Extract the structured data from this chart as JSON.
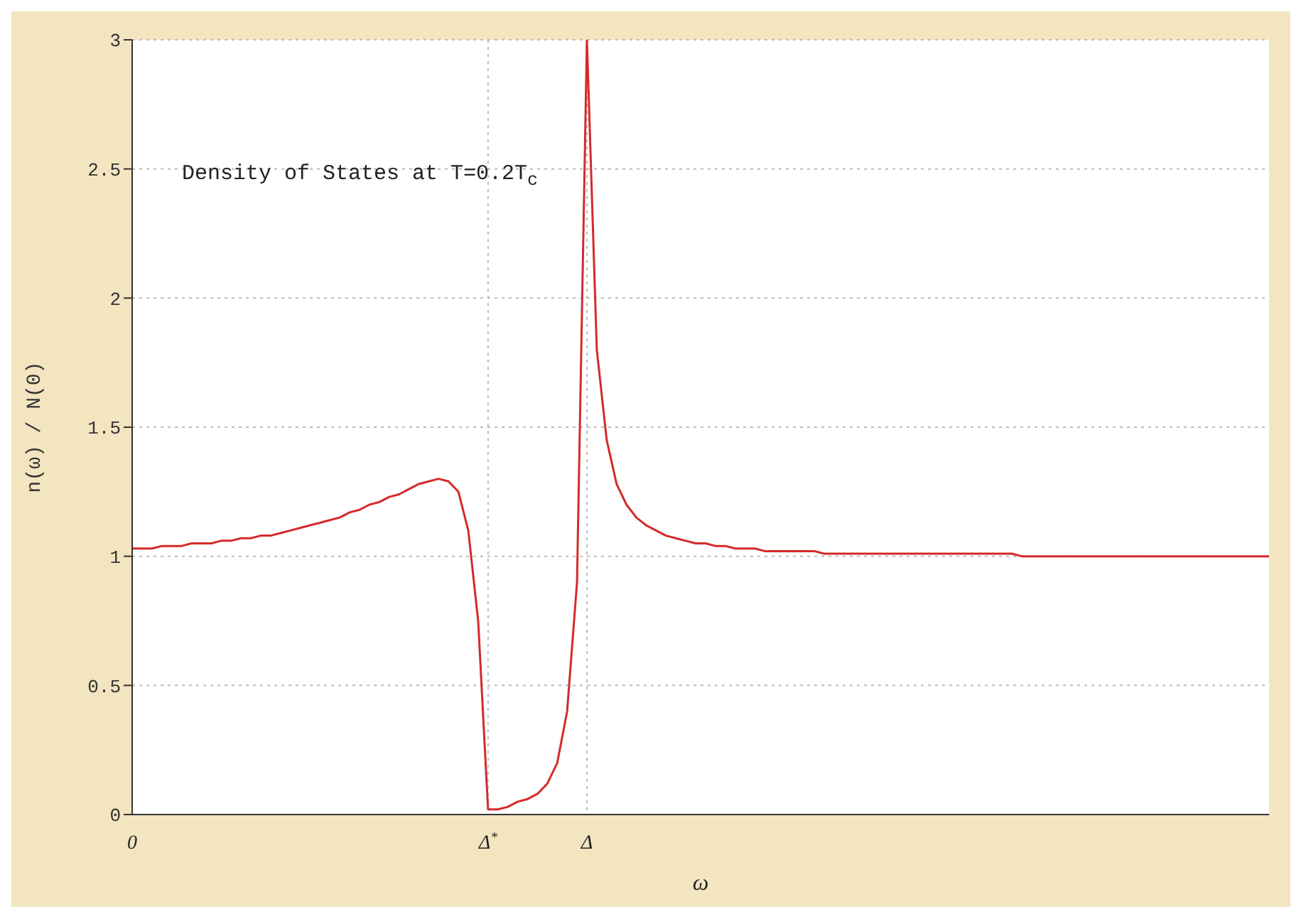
{
  "chart_data": {
    "type": "line",
    "ylabel": "n(ω)  / N(0)",
    "xlabel": "ω",
    "annotations": [
      "Density of States at T=0.2T$_{c}$"
    ],
    "categories": [
      "0",
      null,
      null,
      null,
      null,
      null,
      null,
      null,
      null,
      null,
      null,
      null,
      null,
      null,
      null,
      null,
      null,
      null,
      null,
      null,
      null,
      null,
      null,
      null,
      null,
      null,
      null,
      null,
      null,
      null,
      null,
      null,
      null,
      null,
      null,
      null,
      "Δ$^{*}$",
      null,
      null,
      null,
      null,
      null,
      null,
      null,
      null,
      null,
      "Δ",
      null,
      null,
      null,
      null,
      null,
      null,
      null,
      null,
      null,
      null,
      null,
      null,
      null,
      null,
      null,
      null,
      null,
      null,
      null,
      null,
      null,
      null,
      null,
      null,
      null,
      null,
      null,
      null,
      null,
      null,
      null,
      null,
      null,
      null,
      null,
      null,
      null,
      null,
      null,
      null,
      null,
      null,
      null,
      null,
      null,
      null,
      null,
      null,
      null,
      null,
      null,
      null,
      null,
      null,
      null,
      null,
      null,
      null,
      null,
      null,
      null,
      null,
      null,
      null,
      null,
      null,
      null,
      null,
      null
    ],
    "series": [
      {
        "color": "#d42a2a",
        "values": [
          1.03,
          1.03,
          1.03,
          1.04,
          1.04,
          1.04,
          1.05,
          1.05,
          1.05,
          1.06,
          1.06,
          1.07,
          1.07,
          1.08,
          1.08,
          1.09,
          1.1,
          1.11,
          1.12,
          1.13,
          1.14,
          1.15,
          1.17,
          1.18,
          1.2,
          1.21,
          1.23,
          1.24,
          1.26,
          1.28,
          1.29,
          1.3,
          1.29,
          1.25,
          1.1,
          0.75,
          0.02,
          0.02,
          0.03,
          0.05,
          0.06,
          0.08,
          0.12,
          0.2,
          0.4,
          0.9,
          3,
          1.8,
          1.45,
          1.28,
          1.2,
          1.15,
          1.12,
          1.1,
          1.08,
          1.07,
          1.06,
          1.05,
          1.05,
          1.04,
          1.04,
          1.03,
          1.03,
          1.03,
          1.02,
          1.02,
          1.02,
          1.02,
          1.02,
          1.02,
          1.01,
          1.01,
          1.01,
          1.01,
          1.01,
          1.01,
          1.01,
          1.01,
          1.01,
          1.01,
          1.01,
          1.01,
          1.01,
          1.01,
          1.01,
          1.01,
          1.01,
          1.01,
          1.01,
          1.01,
          1,
          1,
          1,
          1,
          1,
          1,
          1,
          1,
          1,
          1,
          1,
          1,
          1,
          1,
          1,
          1,
          1,
          1,
          1,
          1,
          1,
          1,
          1,
          1,
          1,
          1
        ]
      }
    ],
    "ylim": [
      0,
      3
    ],
    "yticks": [
      0,
      0.5,
      1,
      1.5,
      2,
      2.5,
      3
    ],
    "grid": true,
    "marker": "none",
    "line_style": "solid"
  }
}
